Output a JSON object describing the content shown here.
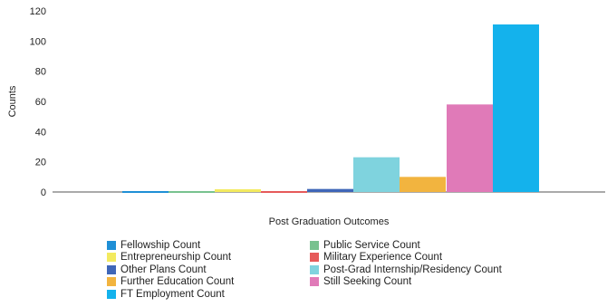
{
  "chart_data": {
    "type": "bar",
    "title": "",
    "xlabel": "Post Graduation Outcomes",
    "ylabel": "Counts",
    "ylim": [
      0,
      120
    ],
    "yticks": [
      0,
      20,
      40,
      60,
      80,
      100,
      120
    ],
    "grid": false,
    "legend_placement": "bottom",
    "series": [
      {
        "name": "Fellowship Count",
        "values": [
          0
        ],
        "color": "#1f8fd6"
      },
      {
        "name": "Public Service Count",
        "values": [
          0
        ],
        "color": "#78c28f"
      },
      {
        "name": "Entrepreneurship Count",
        "values": [
          1
        ],
        "color": "#f3ea5f"
      },
      {
        "name": "Military Experience Count",
        "values": [
          0
        ],
        "color": "#e65a5a"
      },
      {
        "name": "Other Plans Count",
        "values": [
          2
        ],
        "color": "#3f66b8"
      },
      {
        "name": "Post-Grad Internship/Residency Count",
        "values": [
          23
        ],
        "color": "#7fd3de"
      },
      {
        "name": "Further Education Count",
        "values": [
          10
        ],
        "color": "#f2b43f"
      },
      {
        "name": "Still Seeking Count",
        "values": [
          58
        ],
        "color": "#e07ab8"
      },
      {
        "name": "FT Employment Count",
        "values": [
          111
        ],
        "color": "#14b2ec"
      }
    ],
    "legend_order": [
      "Fellowship Count",
      "Public Service Count",
      "Entrepreneurship Count",
      "Military Experience Count",
      "Other Plans Count",
      "Post-Grad Internship/Residency Count",
      "Further Education Count",
      "Still Seeking Count",
      "FT Employment Count"
    ]
  }
}
